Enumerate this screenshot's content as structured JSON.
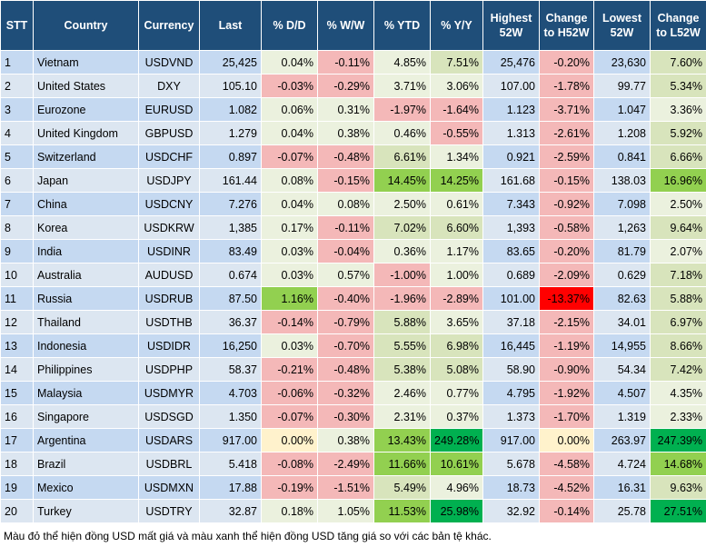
{
  "table": {
    "headers": [
      "STT",
      "Country",
      "Currency",
      "Last",
      "% D/D",
      "% W/W",
      "% YTD",
      "% Y/Y",
      "Highest 52W",
      "Change to H52W",
      "Lowest 52W",
      "Change to L52W"
    ],
    "rows": [
      [
        "1",
        "Vietnam",
        "USDVND",
        "25,425",
        "0.04%",
        "-0.11%",
        "4.85%",
        "7.51%",
        "25,476",
        "-0.20%",
        "23,630",
        "7.60%"
      ],
      [
        "2",
        "United States",
        "DXY",
        "105.10",
        "-0.03%",
        "-0.29%",
        "3.71%",
        "3.06%",
        "107.00",
        "-1.78%",
        "99.77",
        "5.34%"
      ],
      [
        "3",
        "Eurozone",
        "EURUSD",
        "1.082",
        "0.06%",
        "0.31%",
        "-1.97%",
        "-1.64%",
        "1.123",
        "-3.71%",
        "1.047",
        "3.36%"
      ],
      [
        "4",
        "United Kingdom",
        "GBPUSD",
        "1.279",
        "0.04%",
        "0.38%",
        "0.46%",
        "-0.55%",
        "1.313",
        "-2.61%",
        "1.208",
        "5.92%"
      ],
      [
        "5",
        "Switzerland",
        "USDCHF",
        "0.897",
        "-0.07%",
        "-0.48%",
        "6.61%",
        "1.34%",
        "0.921",
        "-2.59%",
        "0.841",
        "6.66%"
      ],
      [
        "6",
        "Japan",
        "USDJPY",
        "161.44",
        "0.08%",
        "-0.15%",
        "14.45%",
        "14.25%",
        "161.68",
        "-0.15%",
        "138.03",
        "16.96%"
      ],
      [
        "7",
        "China",
        "USDCNY",
        "7.276",
        "0.04%",
        "0.08%",
        "2.50%",
        "0.61%",
        "7.343",
        "-0.92%",
        "7.098",
        "2.50%"
      ],
      [
        "8",
        "Korea",
        "USDKRW",
        "1,385",
        "0.17%",
        "-0.11%",
        "7.02%",
        "6.60%",
        "1,393",
        "-0.58%",
        "1,263",
        "9.64%"
      ],
      [
        "9",
        "India",
        "USDINR",
        "83.49",
        "0.03%",
        "-0.04%",
        "0.36%",
        "1.17%",
        "83.65",
        "-0.20%",
        "81.79",
        "2.07%"
      ],
      [
        "10",
        "Australia",
        "AUDUSD",
        "0.674",
        "0.03%",
        "0.57%",
        "-1.00%",
        "1.00%",
        "0.689",
        "-2.09%",
        "0.629",
        "7.18%"
      ],
      [
        "11",
        "Russia",
        "USDRUB",
        "87.50",
        "1.16%",
        "-0.40%",
        "-1.96%",
        "-2.89%",
        "101.00",
        "-13.37%",
        "82.63",
        "5.88%"
      ],
      [
        "12",
        "Thailand",
        "USDTHB",
        "36.37",
        "-0.14%",
        "-0.79%",
        "5.88%",
        "3.65%",
        "37.18",
        "-2.15%",
        "34.01",
        "6.97%"
      ],
      [
        "13",
        "Indonesia",
        "USDIDR",
        "16,250",
        "0.03%",
        "-0.70%",
        "5.55%",
        "6.98%",
        "16,445",
        "-1.19%",
        "14,955",
        "8.66%"
      ],
      [
        "14",
        "Philippines",
        "USDPHP",
        "58.37",
        "-0.21%",
        "-0.48%",
        "5.38%",
        "5.08%",
        "58.90",
        "-0.90%",
        "54.34",
        "7.42%"
      ],
      [
        "15",
        "Malaysia",
        "USDMYR",
        "4.703",
        "-0.06%",
        "-0.32%",
        "2.46%",
        "0.77%",
        "4.795",
        "-1.92%",
        "4.507",
        "4.35%"
      ],
      [
        "16",
        "Singapore",
        "USDSGD",
        "1.350",
        "-0.07%",
        "-0.30%",
        "2.31%",
        "0.37%",
        "1.373",
        "-1.70%",
        "1.319",
        "2.33%"
      ],
      [
        "17",
        "Argentina",
        "USDARS",
        "917.00",
        "0.00%",
        "0.38%",
        "13.43%",
        "249.28%",
        "917.00",
        "0.00%",
        "263.97",
        "247.39%"
      ],
      [
        "18",
        "Brazil",
        "USDBRL",
        "5.418",
        "-0.08%",
        "-2.49%",
        "11.66%",
        "10.61%",
        "5.678",
        "-4.58%",
        "4.724",
        "14.68%"
      ],
      [
        "19",
        "Mexico",
        "USDMXN",
        "17.88",
        "-0.19%",
        "-1.51%",
        "5.49%",
        "4.96%",
        "18.73",
        "-4.52%",
        "16.31",
        "9.63%"
      ],
      [
        "20",
        "Turkey",
        "USDTRY",
        "32.87",
        "0.18%",
        "1.05%",
        "11.53%",
        "25.98%",
        "32.92",
        "-0.14%",
        "25.78",
        "27.51%"
      ]
    ],
    "cell_colors": [
      [
        "#ebf1de",
        "#f4b8b8",
        "#ebf1de",
        "#d8e4bc",
        "#f4b8b8",
        "#d8e4bc"
      ],
      [
        "#f4b8b8",
        "#f4b8b8",
        "#ebf1de",
        "#ebf1de",
        "#f4b8b8",
        "#d8e4bc"
      ],
      [
        "#ebf1de",
        "#ebf1de",
        "#f4b8b8",
        "#f4b8b8",
        "#f4b8b8",
        "#ebf1de"
      ],
      [
        "#ebf1de",
        "#ebf1de",
        "#ebf1de",
        "#f4b8b8",
        "#f4b8b8",
        "#d8e4bc"
      ],
      [
        "#f4b8b8",
        "#f4b8b8",
        "#d8e4bc",
        "#ebf1de",
        "#f4b8b8",
        "#d8e4bc"
      ],
      [
        "#ebf1de",
        "#f4b8b8",
        "#92d050",
        "#92d050",
        "#f4b8b8",
        "#92d050"
      ],
      [
        "#ebf1de",
        "#ebf1de",
        "#ebf1de",
        "#ebf1de",
        "#f4b8b8",
        "#ebf1de"
      ],
      [
        "#ebf1de",
        "#f4b8b8",
        "#d8e4bc",
        "#d8e4bc",
        "#f4b8b8",
        "#d8e4bc"
      ],
      [
        "#ebf1de",
        "#f4b8b8",
        "#ebf1de",
        "#ebf1de",
        "#f4b8b8",
        "#ebf1de"
      ],
      [
        "#ebf1de",
        "#ebf1de",
        "#f4b8b8",
        "#ebf1de",
        "#f4b8b8",
        "#d8e4bc"
      ],
      [
        "#92d050",
        "#f4b8b8",
        "#f4b8b8",
        "#f4b8b8",
        "#ff0000",
        "#d8e4bc"
      ],
      [
        "#f4b8b8",
        "#f4b8b8",
        "#d8e4bc",
        "#ebf1de",
        "#f4b8b8",
        "#d8e4bc"
      ],
      [
        "#ebf1de",
        "#f4b8b8",
        "#d8e4bc",
        "#d8e4bc",
        "#f4b8b8",
        "#d8e4bc"
      ],
      [
        "#f4b8b8",
        "#f4b8b8",
        "#d8e4bc",
        "#d8e4bc",
        "#f4b8b8",
        "#d8e4bc"
      ],
      [
        "#f4b8b8",
        "#f4b8b8",
        "#ebf1de",
        "#ebf1de",
        "#f4b8b8",
        "#ebf1de"
      ],
      [
        "#f4b8b8",
        "#f4b8b8",
        "#ebf1de",
        "#ebf1de",
        "#f4b8b8",
        "#ebf1de"
      ],
      [
        "#fff2cc",
        "#ebf1de",
        "#92d050",
        "#00b050",
        "#fff2cc",
        "#00b050"
      ],
      [
        "#f4b8b8",
        "#f4b8b8",
        "#92d050",
        "#92d050",
        "#f4b8b8",
        "#92d050"
      ],
      [
        "#f4b8b8",
        "#f4b8b8",
        "#d8e4bc",
        "#ebf1de",
        "#f4b8b8",
        "#d8e4bc"
      ],
      [
        "#ebf1de",
        "#ebf1de",
        "#92d050",
        "#00b050",
        "#f4b8b8",
        "#00b050"
      ]
    ]
  },
  "footnote": "Màu đỏ thể hiện đồng USD mất giá và màu xanh thể hiện đồng USD tăng giá so với các bản tệ khác."
}
